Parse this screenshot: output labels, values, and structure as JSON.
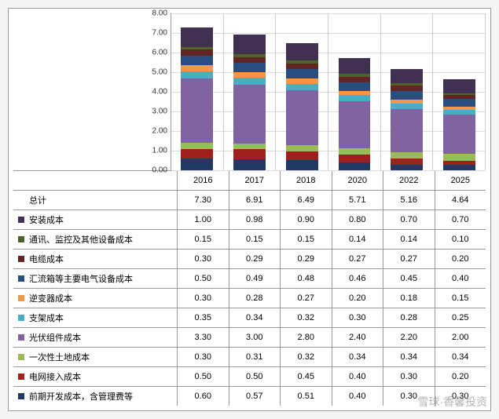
{
  "chart": {
    "type": "stacked-bar",
    "ylim": [
      0,
      8
    ],
    "ytick_step": 1,
    "y_tick_labels": [
      "0.00",
      "1.00",
      "2.00",
      "3.00",
      "4.00",
      "5.00",
      "6.00",
      "7.00",
      "8.00"
    ],
    "years": [
      "2016",
      "2017",
      "2018",
      "2020",
      "2022",
      "2025"
    ],
    "background_color": "#ffffff",
    "grid_color": "#dddddd",
    "border_color": "#999999",
    "bar_width_ratio": 0.62,
    "label_fontsize": 11,
    "tick_fontsize": 10
  },
  "series": [
    {
      "key": "prep",
      "label": "前期开发成本，含管理费等",
      "color": "#1f3864"
    },
    {
      "key": "grid",
      "label": "电网接入成本",
      "color": "#a02020"
    },
    {
      "key": "land",
      "label": "一次性土地成本",
      "color": "#9bbb59"
    },
    {
      "key": "module",
      "label": "光伏组件成本",
      "color": "#8064a2"
    },
    {
      "key": "rack",
      "label": "支架成本",
      "color": "#4bacc6"
    },
    {
      "key": "inverter",
      "label": "逆变器成本",
      "color": "#f79646"
    },
    {
      "key": "combiner",
      "label": "汇流箱等主要电气设备成本",
      "color": "#2a4d7f"
    },
    {
      "key": "cable",
      "label": "电缆成本",
      "color": "#632523"
    },
    {
      "key": "comm",
      "label": "通讯、监控及其他设备成本",
      "color": "#4f6228"
    },
    {
      "key": "install",
      "label": "安装成本",
      "color": "#403152"
    }
  ],
  "rows": [
    {
      "key": "total",
      "label": "总计",
      "swatch": null,
      "values": [
        "7.30",
        "6.91",
        "6.49",
        "5.71",
        "5.16",
        "4.64"
      ]
    },
    {
      "key": "install",
      "label": "安装成本",
      "swatch": "#403152",
      "values": [
        "1.00",
        "0.98",
        "0.90",
        "0.80",
        "0.70",
        "0.70"
      ]
    },
    {
      "key": "comm",
      "label": "通讯、监控及其他设备成本",
      "swatch": "#4f6228",
      "values": [
        "0.15",
        "0.15",
        "0.15",
        "0.14",
        "0.14",
        "0.10"
      ]
    },
    {
      "key": "cable",
      "label": "电缆成本",
      "swatch": "#632523",
      "values": [
        "0.30",
        "0.29",
        "0.29",
        "0.27",
        "0.27",
        "0.20"
      ]
    },
    {
      "key": "combiner",
      "label": "汇流箱等主要电气设备成本",
      "swatch": "#2a4d7f",
      "values": [
        "0.50",
        "0.49",
        "0.48",
        "0.46",
        "0.45",
        "0.40"
      ]
    },
    {
      "key": "inverter",
      "label": "逆变器成本",
      "swatch": "#f79646",
      "values": [
        "0.30",
        "0.28",
        "0.27",
        "0.20",
        "0.18",
        "0.15"
      ]
    },
    {
      "key": "rack",
      "label": "支架成本",
      "swatch": "#4bacc6",
      "values": [
        "0.35",
        "0.34",
        "0.32",
        "0.30",
        "0.28",
        "0.25"
      ]
    },
    {
      "key": "module",
      "label": "光伏组件成本",
      "swatch": "#8064a2",
      "values": [
        "3.30",
        "3.00",
        "2.80",
        "2.40",
        "2.20",
        "2.00"
      ]
    },
    {
      "key": "land",
      "label": "一次性土地成本",
      "swatch": "#9bbb59",
      "values": [
        "0.30",
        "0.31",
        "0.32",
        "0.34",
        "0.34",
        "0.34"
      ]
    },
    {
      "key": "grid",
      "label": "电网接入成本",
      "swatch": "#a02020",
      "values": [
        "0.50",
        "0.50",
        "0.45",
        "0.40",
        "0.30",
        "0.20"
      ]
    },
    {
      "key": "prep",
      "label": "前期开发成本，含管理费等",
      "swatch": "#1f3864",
      "values": [
        "0.60",
        "0.57",
        "0.51",
        "0.40",
        "0.30",
        "0.30"
      ]
    }
  ],
  "watermark": "雪球·香馨投资"
}
